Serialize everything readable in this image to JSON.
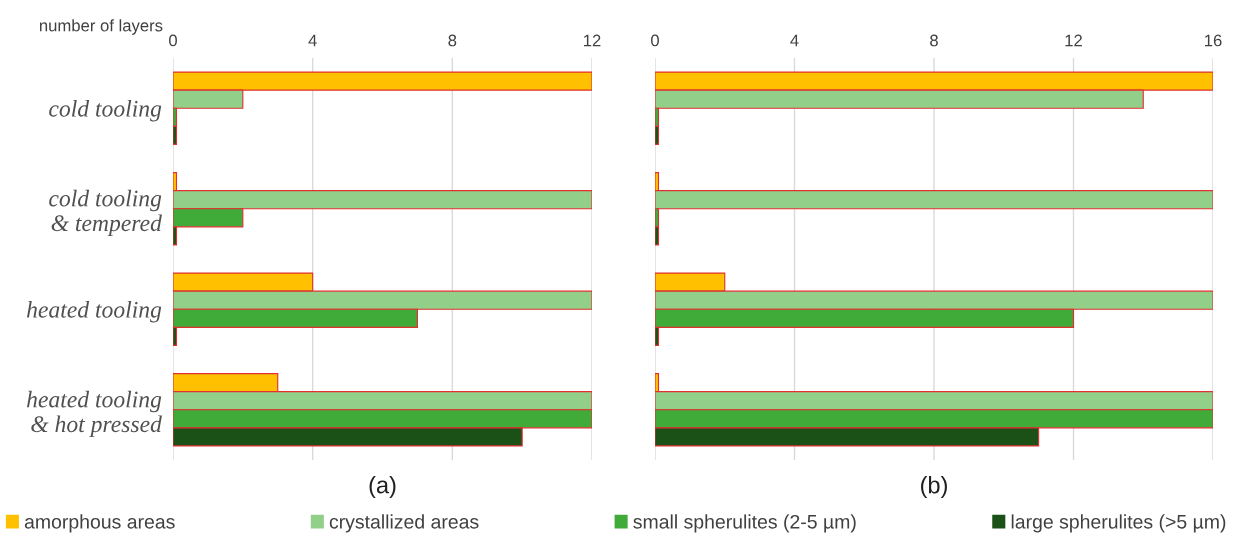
{
  "chart_data": [
    {
      "type": "bar",
      "orientation": "horizontal",
      "title": "(a)",
      "xlabel": "number of layers",
      "categories": [
        "cold tooling",
        "cold tooling\n& tempered",
        "heated tooling",
        "heated tooling\n& hot pressed"
      ],
      "xlim": [
        0,
        12
      ],
      "xticks": [
        0,
        4,
        8,
        12
      ],
      "grid": "x",
      "legend": "bottom",
      "series": [
        {
          "name": "amorphous areas",
          "color": "#ffc000",
          "values": [
            12,
            0.1,
            4,
            3
          ]
        },
        {
          "name": "crystallized areas",
          "color": "#92d08a",
          "values": [
            2,
            12,
            12,
            12
          ]
        },
        {
          "name": "small spherulites (2-5 µm)",
          "color": "#41ab3a",
          "values": [
            0.1,
            2,
            7,
            12
          ]
        },
        {
          "name": "large spherulites (>5 µm)",
          "color": "#1b5016",
          "values": [
            0.1,
            0.1,
            0.1,
            10
          ]
        }
      ]
    },
    {
      "type": "bar",
      "orientation": "horizontal",
      "title": "(b)",
      "categories": [
        null,
        null,
        null,
        null
      ],
      "tick_labels": "x",
      "xlim": [
        0,
        16
      ],
      "xticks": [
        0,
        4,
        8,
        12,
        16
      ],
      "grid": "x",
      "series": [
        {
          "color": "#ffc000",
          "values": [
            16,
            0.1,
            2,
            0.1
          ]
        },
        {
          "color": "#92d08a",
          "values": [
            14,
            16,
            16,
            16
          ]
        },
        {
          "color": "#41ab3a",
          "values": [
            0.1,
            0.1,
            12,
            16
          ]
        },
        {
          "color": "#1b5016",
          "values": [
            0.1,
            0.1,
            0.1,
            11
          ]
        }
      ]
    }
  ]
}
